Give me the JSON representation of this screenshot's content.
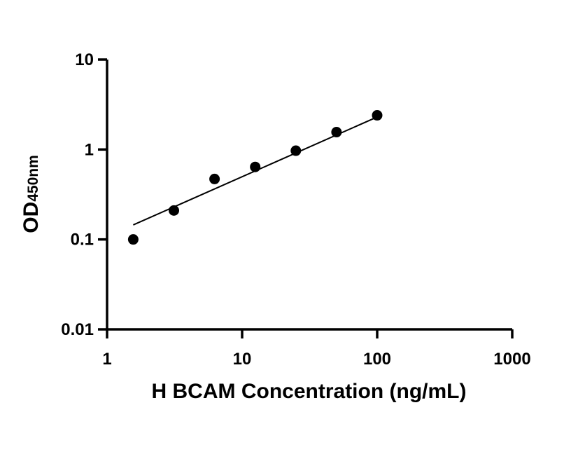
{
  "chart_data": {
    "type": "scatter",
    "title": "",
    "xlabel": "H BCAM Concentration (ng/mL)",
    "ylabel": {
      "main": "OD",
      "subscript": "450nm"
    },
    "x_scale": "log",
    "y_scale": "log",
    "xlim": [
      1,
      1000
    ],
    "ylim": [
      0.01,
      10
    ],
    "x_ticks": [
      {
        "value": 1,
        "label": "1"
      },
      {
        "value": 10,
        "label": "10"
      },
      {
        "value": 100,
        "label": "100"
      },
      {
        "value": 1000,
        "label": "1000"
      }
    ],
    "y_ticks": [
      {
        "value": 0.01,
        "label": "0.01"
      },
      {
        "value": 0.1,
        "label": "0.1"
      },
      {
        "value": 1,
        "label": "1"
      },
      {
        "value": 10,
        "label": "10"
      }
    ],
    "grid": false,
    "legend": "none",
    "marker_color": "#000000",
    "line_color": "#000000",
    "points": [
      {
        "x": 1.5625,
        "y": 0.1
      },
      {
        "x": 3.125,
        "y": 0.21
      },
      {
        "x": 6.25,
        "y": 0.47
      },
      {
        "x": 12.5,
        "y": 0.64
      },
      {
        "x": 25,
        "y": 0.97
      },
      {
        "x": 50,
        "y": 1.56
      },
      {
        "x": 100,
        "y": 2.4
      }
    ],
    "fit_line": {
      "x": [
        1.5625,
        100
      ],
      "y": [
        0.145,
        2.3
      ]
    }
  }
}
